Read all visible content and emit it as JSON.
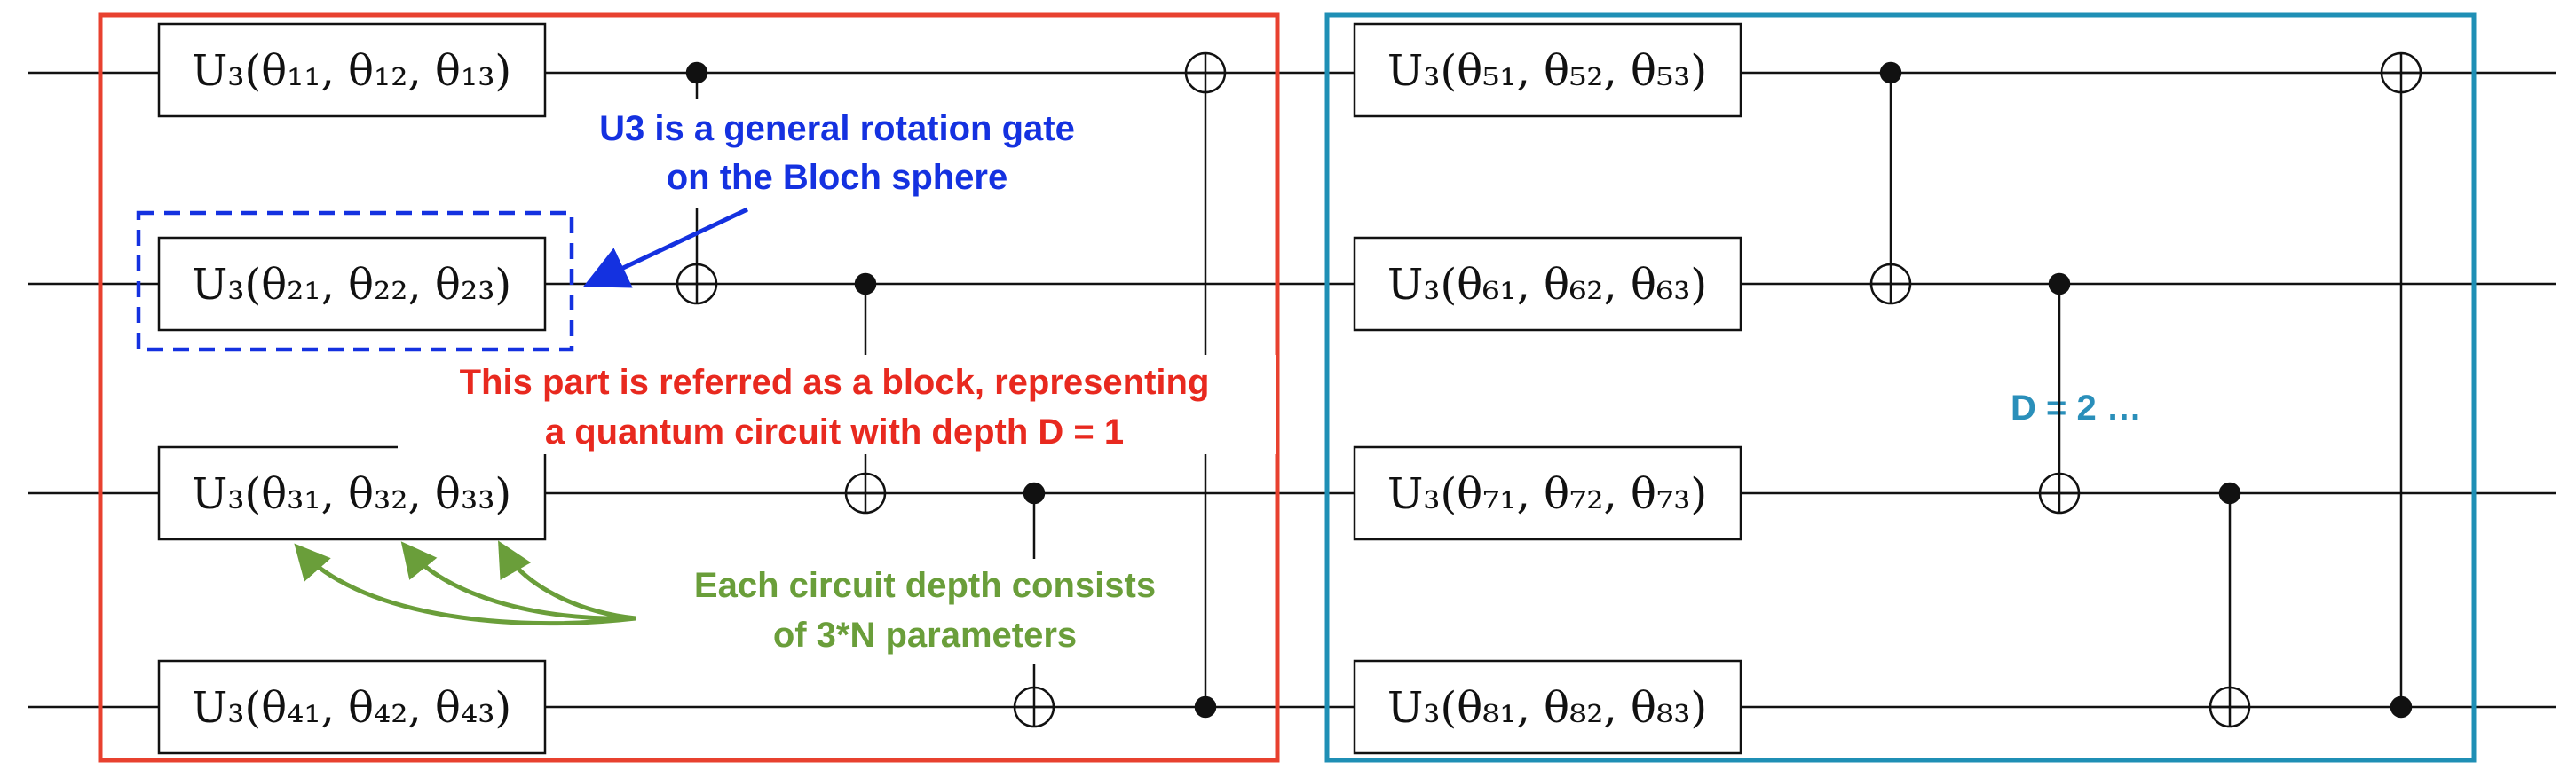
{
  "colors": {
    "wire": "#111111",
    "block1_border": "#e8412f",
    "block2_border": "#1f8fb5",
    "annotation_blue": "#1431e0",
    "annotation_red": "#e8291f",
    "annotation_green": "#6a9e3a",
    "annotation_teal": "#2a8fba"
  },
  "gates": {
    "b1_q1": "U₃(θ₁₁, θ₁₂, θ₁₃)",
    "b1_q2": "U₃(θ₂₁, θ₂₂, θ₂₃)",
    "b1_q3": "U₃(θ₃₁, θ₃₂, θ₃₃)",
    "b1_q4": "U₃(θ₄₁, θ₄₂, θ₄₃)",
    "b2_q1": "U₃(θ₅₁, θ₅₂, θ₅₃)",
    "b2_q2": "U₃(θ₆₁, θ₆₂, θ₆₃)",
    "b2_q3": "U₃(θ₇₁, θ₇₂, θ₇₃)",
    "b2_q4": "U₃(θ₈₁, θ₈₂, θ₈₃)"
  },
  "annotations": {
    "u3_line1": "U3 is a general rotation gate",
    "u3_line2": "on the Bloch sphere",
    "block_line1": "This part is referred as a block, representing",
    "block_line2": "a  quantum circuit with depth D = 1",
    "params_line1": "Each circuit depth consists",
    "params_line2": "of 3*N parameters",
    "depth2": "D = 2 …"
  }
}
